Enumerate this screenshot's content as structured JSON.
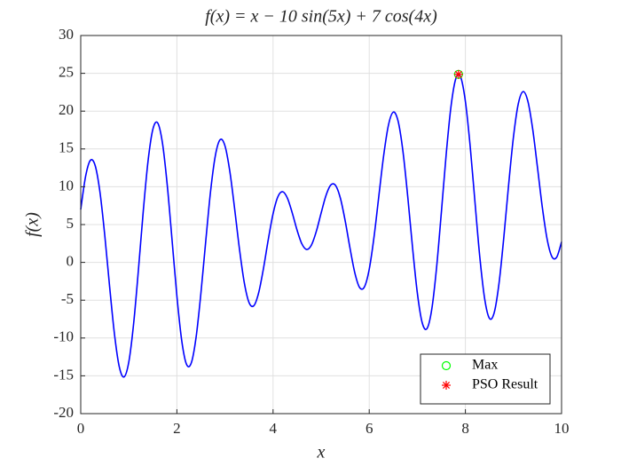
{
  "chart_data": {
    "type": "line",
    "title": "f(x) = x − 10 sin(5x) + 7 cos(4x)",
    "xlabel": "x",
    "ylabel": "f(x)",
    "x": [
      0,
      0.1,
      0.2,
      0.3,
      0.4,
      0.5,
      0.6,
      0.7,
      0.8,
      0.9,
      1,
      1.1,
      1.2,
      1.3,
      1.4,
      1.5,
      1.6,
      1.7,
      1.8,
      1.9,
      2,
      2.1,
      2.2,
      2.3,
      2.4,
      2.5,
      2.6,
      2.7,
      2.8,
      2.9,
      3,
      3.1,
      3.2,
      3.3,
      3.4,
      3.5,
      3.6,
      3.7,
      3.8,
      3.9,
      4,
      4.1,
      4.2,
      4.3,
      4.4,
      4.5,
      4.6,
      4.7,
      4.8,
      4.9,
      5,
      5.1,
      5.2,
      5.3,
      5.4,
      5.5,
      5.6,
      5.7,
      5.8,
      5.9,
      6,
      6.1,
      6.2,
      6.3,
      6.4,
      6.5,
      6.6,
      6.7,
      6.8,
      6.9,
      7,
      7.1,
      7.2,
      7.3,
      7.4,
      7.5,
      7.6,
      7.7,
      7.8,
      7.9,
      8,
      8.1,
      8.2,
      8.3,
      8.4,
      8.5,
      8.6,
      8.7,
      8.8,
      8.9,
      9,
      9.1,
      9.2,
      9.3,
      9.4,
      9.5,
      9.6,
      9.7,
      9.8,
      9.9,
      10
    ],
    "series": [
      {
        "color": "#0000ff",
        "values": [
          7.0,
          11.34,
          13.49,
          12.81,
          9.29,
          3.57,
          -3.15,
          -9.4,
          -13.76,
          -15.15,
          -13.16,
          -8.11,
          -0.98,
          6.73,
          13.4,
          17.6,
          18.45,
          15.77,
          10.18,
          2.91,
          -4.46,
          -10.33,
          -13.48,
          -13.28,
          -9.86,
          -4.04,
          2.81,
          9.38,
          14.13,
          16.23,
          15.41,
          12.07,
          7.13,
          1.82,
          -2.63,
          -5.3,
          -5.73,
          -4.03,
          -0.82,
          3.0,
          6.43,
          8.68,
          9.34,
          8.47,
          6.52,
          4.25,
          2.44,
          1.71,
          2.32,
          4.11,
          6.53,
          8.83,
          10.23,
          10.17,
          8.49,
          5.49,
          1.89,
          -1.37,
          -3.32,
          -3.24,
          -0.91,
          3.37,
          8.78,
          14.12,
          18.16,
          19.87,
          18.69,
          14.74,
          8.76,
          2.01,
          -4.02,
          -7.94,
          -8.77,
          -6.23,
          -0.73,
          6.6,
          14.25,
          20.59,
          24.28,
          24.52,
          21.29,
          15.32,
          7.91,
          0.69,
          -4.79,
          -7.4,
          -6.63,
          -2.73,
          3.37,
          10.32,
          16.61,
          20.97,
          22.58,
          21.29,
          17.6,
          12.51,
          7.27,
          3.06,
          0.75,
          0.7,
          2.71
        ]
      }
    ],
    "markers": [
      {
        "name": "Max",
        "color": "#00ff00",
        "marker": "circle",
        "x": [
          7.857
        ],
        "values": [
          24.86
        ]
      },
      {
        "name": "PSO Result",
        "color": "#ff0000",
        "marker": "asterisk",
        "x": [
          7.857
        ],
        "values": [
          24.86
        ]
      }
    ],
    "xlim": [
      0,
      10
    ],
    "xticks": [
      0,
      2,
      4,
      6,
      8,
      10
    ],
    "ylim": [
      -20,
      30
    ],
    "yticks": [
      -20,
      -15,
      -10,
      -5,
      0,
      5,
      10,
      15,
      20,
      25,
      30
    ],
    "grid": true,
    "legend": "lower right"
  }
}
